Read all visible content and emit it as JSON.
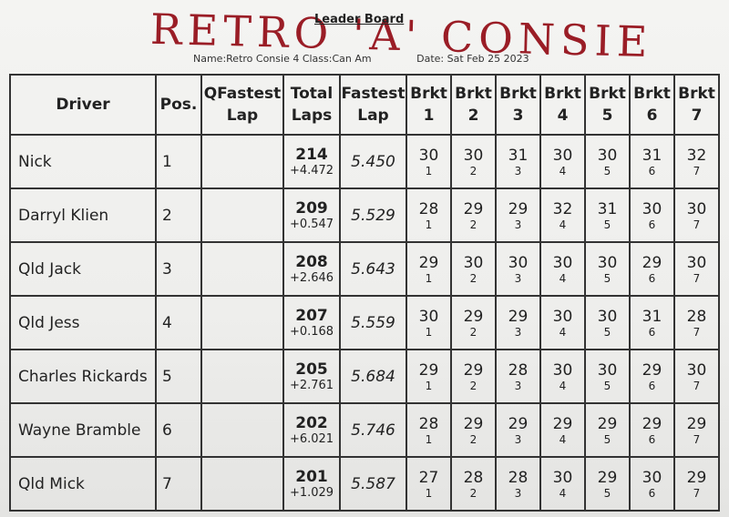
{
  "header": {
    "handwritten_title": "RETRO 'A' CONSIE",
    "title": "Leader Board",
    "race": "Name:Retro Consie 4 Class:Can Am",
    "date": "Date: Sat Feb 25 2023"
  },
  "table": {
    "columns": [
      "Driver",
      "Pos.",
      "QFastest Lap",
      "Total Laps",
      "Fastest Lap",
      "Brkt 1",
      "Brkt 2",
      "Brkt 3",
      "Brkt 4",
      "Brkt 5",
      "Brkt 6",
      "Brkt 7"
    ],
    "rows": [
      {
        "driver": "Nick",
        "pos": 1,
        "total_laps": 214,
        "gap": "+4.472",
        "fastest_lap": "5.450",
        "brackets": [
          [
            30,
            1
          ],
          [
            30,
            2
          ],
          [
            31,
            3
          ],
          [
            30,
            4
          ],
          [
            30,
            5
          ],
          [
            31,
            6
          ],
          [
            32,
            7
          ]
        ]
      },
      {
        "driver": "Darryl Klien",
        "pos": 2,
        "total_laps": 209,
        "gap": "+0.547",
        "fastest_lap": "5.529",
        "brackets": [
          [
            28,
            1
          ],
          [
            29,
            2
          ],
          [
            29,
            3
          ],
          [
            32,
            4
          ],
          [
            31,
            5
          ],
          [
            30,
            6
          ],
          [
            30,
            7
          ]
        ]
      },
      {
        "driver": "Qld Jack",
        "pos": 3,
        "total_laps": 208,
        "gap": "+2.646",
        "fastest_lap": "5.643",
        "brackets": [
          [
            29,
            1
          ],
          [
            30,
            2
          ],
          [
            30,
            3
          ],
          [
            30,
            4
          ],
          [
            30,
            5
          ],
          [
            29,
            6
          ],
          [
            30,
            7
          ]
        ]
      },
      {
        "driver": "Qld Jess",
        "pos": 4,
        "total_laps": 207,
        "gap": "+0.168",
        "fastest_lap": "5.559",
        "brackets": [
          [
            30,
            1
          ],
          [
            29,
            2
          ],
          [
            29,
            3
          ],
          [
            30,
            4
          ],
          [
            30,
            5
          ],
          [
            31,
            6
          ],
          [
            28,
            7
          ]
        ]
      },
      {
        "driver": "Charles Rickards",
        "pos": 5,
        "total_laps": 205,
        "gap": "+2.761",
        "fastest_lap": "5.684",
        "brackets": [
          [
            29,
            1
          ],
          [
            29,
            2
          ],
          [
            28,
            3
          ],
          [
            30,
            4
          ],
          [
            30,
            5
          ],
          [
            29,
            6
          ],
          [
            30,
            7
          ]
        ]
      },
      {
        "driver": "Wayne Bramble",
        "pos": 6,
        "total_laps": 202,
        "gap": "+6.021",
        "fastest_lap": "5.746",
        "brackets": [
          [
            28,
            1
          ],
          [
            29,
            2
          ],
          [
            29,
            3
          ],
          [
            29,
            4
          ],
          [
            29,
            5
          ],
          [
            29,
            6
          ],
          [
            29,
            7
          ]
        ]
      },
      {
        "driver": "Qld Mick",
        "pos": 7,
        "total_laps": 201,
        "gap": "+1.029",
        "fastest_lap": "5.587",
        "brackets": [
          [
            27,
            1
          ],
          [
            28,
            2
          ],
          [
            28,
            3
          ],
          [
            30,
            4
          ],
          [
            29,
            5
          ],
          [
            30,
            6
          ],
          [
            29,
            7
          ]
        ]
      }
    ]
  }
}
